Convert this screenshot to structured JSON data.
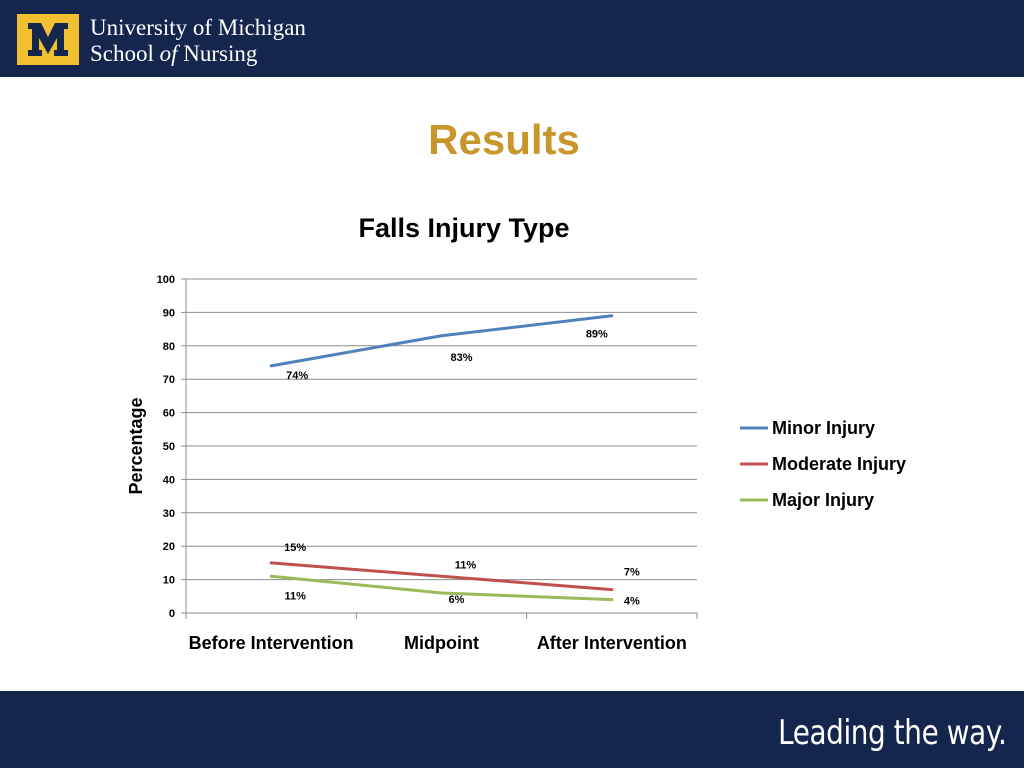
{
  "header": {
    "logo_letter": "M",
    "institution_line1": "University of Michigan",
    "institution_line2_a": "School ",
    "institution_line2_of": "of",
    "institution_line2_b": " Nursing"
  },
  "slide": {
    "title": "Results"
  },
  "footer": {
    "tagline": "Leading the way."
  },
  "colors": {
    "navy": "#14264d",
    "maize": "#f2c02e",
    "title_gold": "#c9962b",
    "minor": "#4f81bd",
    "moderate": "#c0504d",
    "major": "#9bbb59"
  },
  "chart_data": {
    "type": "line",
    "title": "Falls Injury Type",
    "xlabel": "",
    "ylabel": "Percentage",
    "ylim": [
      0,
      100
    ],
    "yticks": [
      "0",
      "10",
      "20",
      "30",
      "40",
      "50",
      "60",
      "70",
      "80",
      "90",
      "100"
    ],
    "grid": true,
    "legend_position": "right",
    "categories": [
      "Before Intervention",
      "Midpoint",
      "After Intervention"
    ],
    "series": [
      {
        "name": "Minor Injury",
        "color": "#4f81bd",
        "values": [
          74,
          83,
          89
        ],
        "labels": [
          "74%",
          "83%",
          "89%"
        ]
      },
      {
        "name": "Moderate Injury",
        "color": "#c0504d",
        "values": [
          15,
          11,
          7
        ],
        "labels": [
          "15%",
          "11%",
          "7%"
        ]
      },
      {
        "name": "Major Injury",
        "color": "#9bbb59",
        "values": [
          11,
          6,
          4
        ],
        "labels": [
          "11%",
          "6%",
          "4%"
        ]
      }
    ]
  }
}
